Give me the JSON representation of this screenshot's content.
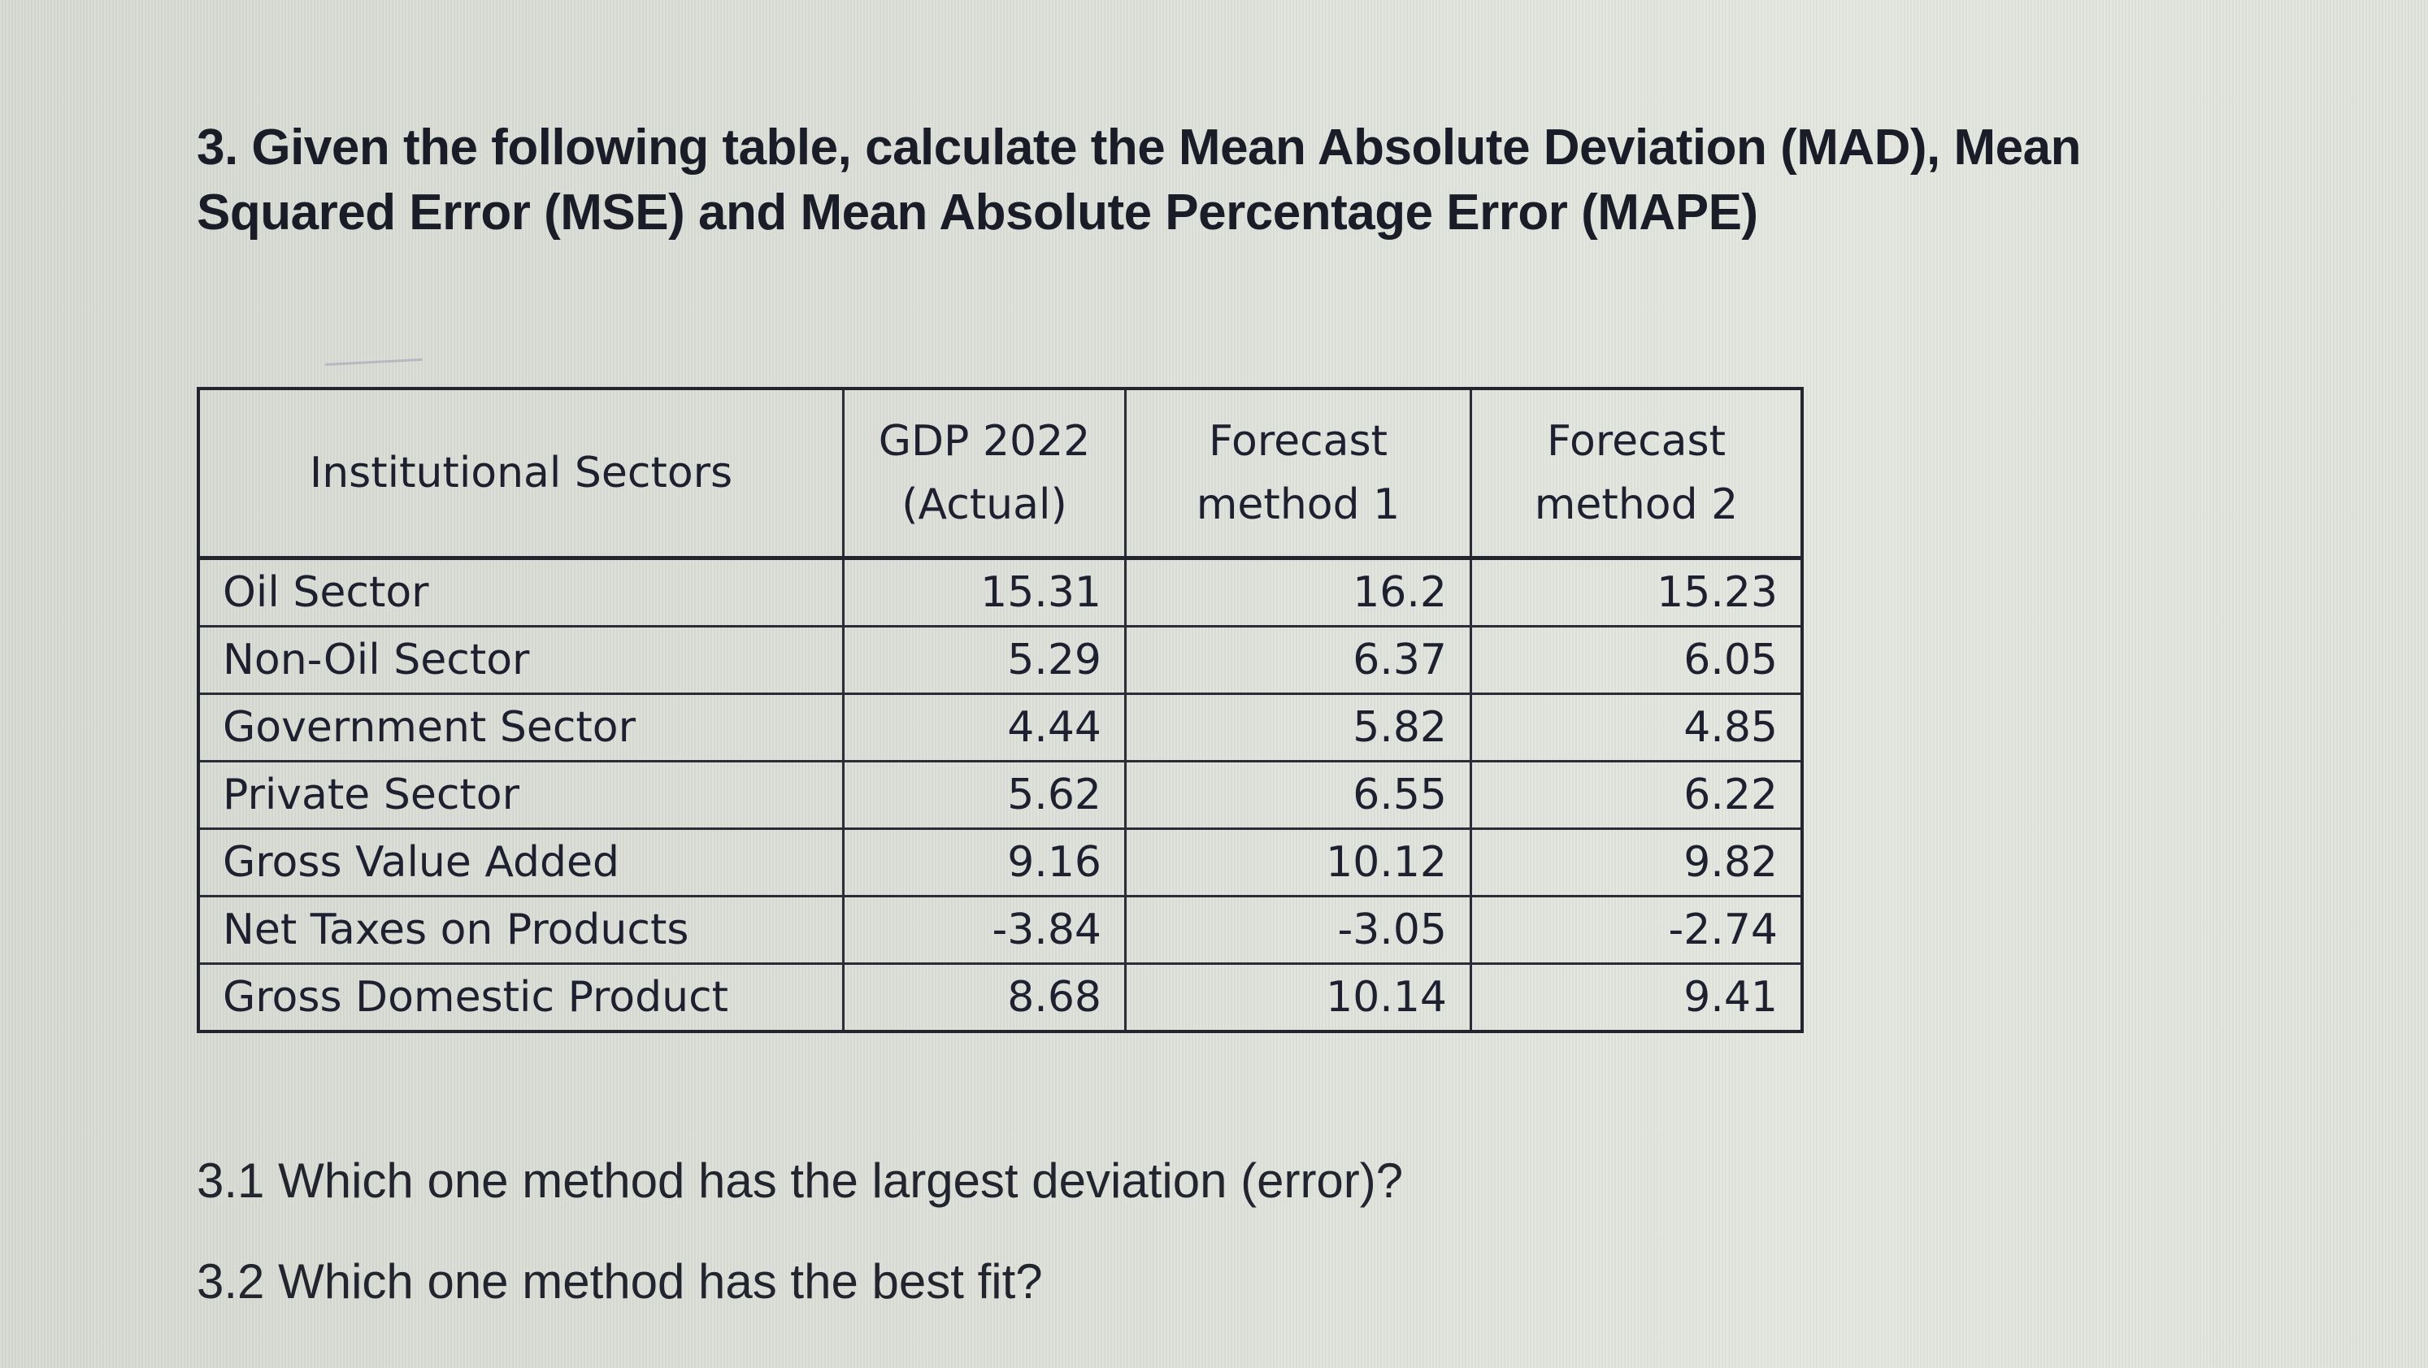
{
  "question": {
    "title_line1": "3. Given the following table, calculate the Mean Absolute Deviation (MAD), Mean",
    "title_line2": "Squared Error (MSE) and Mean Absolute Percentage Error (MAPE)"
  },
  "table": {
    "headers": [
      {
        "line1": "Institutional Sectors",
        "line2": ""
      },
      {
        "line1": "GDP 2022",
        "line2": "(Actual)"
      },
      {
        "line1": "Forecast",
        "line2": "method 1"
      },
      {
        "line1": "Forecast",
        "line2": "method 2"
      }
    ],
    "rows": [
      {
        "sector": "Oil Sector",
        "actual": "15.31",
        "method1": "16.2",
        "method2": "15.23"
      },
      {
        "sector": "Non-Oil Sector",
        "actual": "5.29",
        "method1": "6.37",
        "method2": "6.05"
      },
      {
        "sector": "Government Sector",
        "actual": "4.44",
        "method1": "5.82",
        "method2": "4.85"
      },
      {
        "sector": "Private Sector",
        "actual": "5.62",
        "method1": "6.55",
        "method2": "6.22"
      },
      {
        "sector": "Gross Value Added",
        "actual": "9.16",
        "method1": "10.12",
        "method2": "9.82"
      },
      {
        "sector": "Net Taxes on Products",
        "actual": "-3.84",
        "method1": "-3.05",
        "method2": "-2.74"
      },
      {
        "sector": "Gross Domestic Product",
        "actual": "8.68",
        "method1": "10.14",
        "method2": "9.41"
      }
    ]
  },
  "subquestions": [
    {
      "text": "3.1 Which one method has the largest deviation (error)?"
    },
    {
      "text": "3.2 Which one method has the best fit?"
    }
  ]
}
